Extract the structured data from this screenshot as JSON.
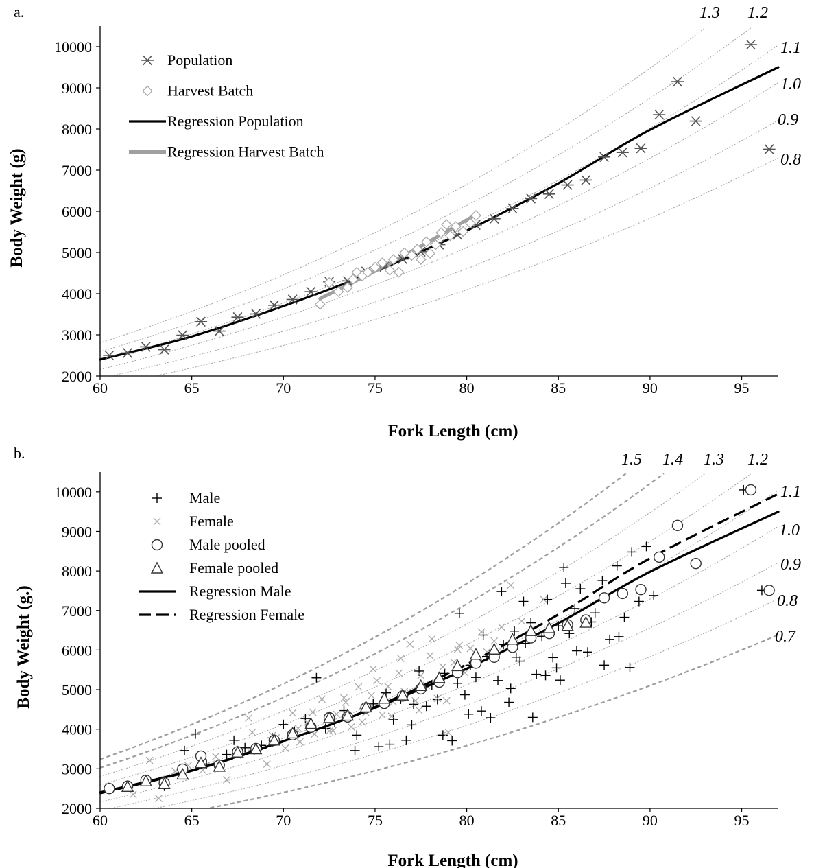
{
  "chart_data": [
    {
      "panel": "a.",
      "type": "scatter",
      "xlabel": "Fork Length (cm)",
      "ylabel": "Body Weight (g)",
      "xlim": [
        60,
        97
      ],
      "ylim": [
        2000,
        10500
      ],
      "x_ticks": [
        60,
        65,
        70,
        75,
        80,
        85,
        90,
        95
      ],
      "y_ticks": [
        2000,
        3000,
        4000,
        5000,
        6000,
        7000,
        8000,
        9000,
        10000
      ],
      "grid": false,
      "legend_position": "top-left",
      "condition_curves": {
        "values": [
          0.8,
          0.9,
          1.0,
          1.1,
          1.2,
          1.3
        ],
        "labels": [
          "0.8",
          "0.9",
          "1.0",
          "1.1",
          "1.2",
          "1.3"
        ],
        "color": "#9a9a9a",
        "style": "dotted"
      },
      "series": [
        {
          "name": "Population",
          "kind": "points",
          "marker": "asterisk",
          "color": "#555555",
          "x": [
            60.5,
            61.5,
            62.5,
            63.5,
            64.5,
            65.5,
            66.5,
            67.5,
            68.5,
            69.5,
            70.5,
            71.5,
            72.5,
            73.5,
            74.5,
            75.5,
            76.5,
            77.5,
            78.5,
            79.5,
            80.5,
            81.5,
            82.5,
            83.5,
            84.5,
            85.5,
            86.5,
            87.5,
            88.5,
            89.5,
            90.5,
            91.5,
            92.5,
            95.5,
            96.5
          ],
          "y": [
            2500,
            2560,
            2710,
            2640,
            2990,
            3320,
            3090,
            3430,
            3510,
            3720,
            3860,
            4050,
            4290,
            4310,
            4540,
            4650,
            4840,
            5020,
            5190,
            5430,
            5670,
            5820,
            6070,
            6310,
            6420,
            6640,
            6760,
            7320,
            7430,
            7530,
            8350,
            9150,
            8190,
            10050,
            7510
          ]
        },
        {
          "name": "Harvest Batch",
          "kind": "points",
          "marker": "diamond",
          "color": "#a8a8a8",
          "x": [
            72.0,
            72.5,
            73.0,
            73.5,
            73.8,
            74.0,
            74.3,
            74.6,
            75.0,
            75.4,
            75.8,
            76.0,
            76.3,
            76.6,
            77.0,
            77.3,
            77.5,
            77.8,
            78.0,
            78.3,
            78.6,
            78.9,
            79.1,
            79.4,
            79.8,
            80.2,
            80.5
          ],
          "y": [
            3740,
            4270,
            4050,
            4150,
            4350,
            4520,
            4430,
            4520,
            4640,
            4750,
            4570,
            4830,
            4520,
            4990,
            4930,
            5080,
            4830,
            5260,
            4980,
            5190,
            5480,
            5680,
            5410,
            5630,
            5510,
            5710,
            5900
          ]
        },
        {
          "name": "Regression Population",
          "kind": "curve",
          "color": "#000000",
          "x": [
            60,
            65,
            70,
            75,
            80,
            85,
            90,
            97
          ],
          "y": [
            2400,
            2960,
            3700,
            4540,
            5530,
            6680,
            7980,
            9500
          ]
        },
        {
          "name": "Regression Harvest Batch",
          "kind": "curve",
          "color": "#a0a0a0",
          "x": [
            72,
            76,
            80.5
          ],
          "y": [
            3880,
            4780,
            5920
          ]
        }
      ]
    },
    {
      "panel": "b.",
      "type": "scatter",
      "xlabel": "Fork Length (cm)",
      "ylabel": "Body Weight (g.)",
      "xlim": [
        60,
        97
      ],
      "ylim": [
        2000,
        10500
      ],
      "x_ticks": [
        60,
        65,
        70,
        75,
        80,
        85,
        90,
        95
      ],
      "y_ticks": [
        2000,
        3000,
        4000,
        5000,
        6000,
        7000,
        8000,
        9000,
        10000
      ],
      "grid": false,
      "legend_position": "top-left",
      "condition_curves": {
        "values": [
          0.7,
          0.8,
          0.9,
          1.0,
          1.1,
          1.2,
          1.3,
          1.4,
          1.5
        ],
        "labels": [
          "0.7",
          "0.8",
          "0.9",
          "1.0",
          "1.1",
          "1.2",
          "1.3",
          "1.4",
          "1.5"
        ],
        "dashed": [
          0.7,
          1.4,
          1.5
        ],
        "color": "#9a9a9a"
      },
      "series": [
        {
          "name": "Male",
          "kind": "points",
          "marker": "plus",
          "color": "#000000",
          "x": [
            63.5,
            64.6,
            65.2,
            65.8,
            66.9,
            67.3,
            67.9,
            68.4,
            68.8,
            69.4,
            70.0,
            70.6,
            71.2,
            71.8,
            72.3,
            72.8,
            73.3,
            73.6,
            74.0,
            74.4,
            74.9,
            75.2,
            75.6,
            76.0,
            76.4,
            76.7,
            77.1,
            77.4,
            77.8,
            78.1,
            78.4,
            78.8,
            79.2,
            79.5,
            79.9,
            80.2,
            80.5,
            80.8,
            81.1,
            81.4,
            81.7,
            82.0,
            82.3,
            82.6,
            82.9,
            83.2,
            83.5,
            83.8,
            84.1,
            84.4,
            84.7,
            85.0,
            85.3,
            85.6,
            85.9,
            86.2,
            86.6,
            87.0,
            87.4,
            87.8,
            88.2,
            88.6,
            89.0,
            89.4,
            89.8,
            90.2,
            95.1,
            96.1,
            73.9,
            75.8,
            77.0,
            78.7,
            80.1,
            81.3,
            82.4,
            83.6,
            84.9,
            86.0,
            87.5,
            88.9,
            79.6,
            81.9,
            83.1,
            85.4,
            86.8,
            88.3,
            80.9,
            82.7,
            84.3,
            85.1
          ],
          "y": [
            2560,
            3460,
            3880,
            3120,
            3360,
            3720,
            3530,
            3460,
            3590,
            3780,
            4120,
            3950,
            4270,
            5300,
            4020,
            4180,
            4470,
            4330,
            3850,
            4510,
            4640,
            3560,
            4920,
            4240,
            4760,
            3720,
            4630,
            5470,
            4580,
            5120,
            4750,
            5410,
            3710,
            5160,
            4870,
            5620,
            5310,
            4460,
            5840,
            5990,
            5230,
            6140,
            4680,
            6480,
            5720,
            6170,
            6690,
            5390,
            6350,
            7280,
            5810,
            6610,
            8090,
            6420,
            7050,
            7550,
            5950,
            6940,
            7760,
            6270,
            8130,
            6830,
            8480,
            7230,
            8620,
            7380,
            10050,
            7510,
            3460,
            3620,
            4110,
            3850,
            4380,
            4290,
            5030,
            4300,
            5550,
            5980,
            5620,
            5560,
            6930,
            7480,
            7230,
            7690,
            6710,
            6340,
            6380,
            5820,
            5360,
            5240
          ]
        },
        {
          "name": "Female",
          "kind": "points",
          "marker": "cross",
          "color": "#aaaaaa",
          "x": [
            61.8,
            62.7,
            63.2,
            64.1,
            64.8,
            65.6,
            66.3,
            66.9,
            67.5,
            68.1,
            68.6,
            69.1,
            69.6,
            70.1,
            70.5,
            70.9,
            71.3,
            71.7,
            72.1,
            72.5,
            72.9,
            73.3,
            73.7,
            74.1,
            74.5,
            74.8,
            75.1,
            75.4,
            75.7,
            76.0,
            76.3,
            76.6,
            76.9,
            77.2,
            77.5,
            77.8,
            78.1,
            78.4,
            78.7,
            79.0,
            79.3,
            79.6,
            79.9,
            80.2,
            80.5,
            80.8,
            81.1,
            81.5,
            81.9,
            82.4,
            83.0,
            84.2,
            68.3,
            70.8,
            72.7,
            74.3,
            75.9,
            77.4,
            78.9,
            69.4,
            71.6,
            73.4,
            74.9,
            76.4,
            78.0,
            79.5
          ],
          "y": [
            2350,
            3210,
            2250,
            2940,
            3080,
            2960,
            3310,
            2720,
            3340,
            4280,
            3450,
            3120,
            3780,
            3520,
            4410,
            3680,
            4170,
            3880,
            4760,
            3950,
            4380,
            4790,
            4060,
            5070,
            4420,
            4850,
            5230,
            4360,
            5080,
            4690,
            5420,
            4950,
            6150,
            4720,
            5360,
            5110,
            6280,
            4780,
            5580,
            3920,
            5690,
            6120,
            5430,
            6040,
            5820,
            6460,
            5950,
            6230,
            6580,
            7640,
            6730,
            7280,
            3920,
            4020,
            3960,
            4180,
            4330,
            4480,
            4720,
            3840,
            4430,
            4680,
            5520,
            5790,
            5860,
            6020
          ]
        },
        {
          "name": "Male pooled",
          "kind": "points",
          "marker": "circle",
          "color": "#000000",
          "x": [
            60.5,
            61.5,
            62.5,
            63.5,
            64.5,
            65.5,
            66.5,
            67.5,
            68.5,
            69.5,
            70.5,
            71.5,
            72.5,
            73.5,
            74.5,
            75.5,
            76.5,
            77.5,
            78.5,
            79.5,
            80.5,
            81.5,
            82.5,
            83.5,
            84.5,
            85.5,
            86.5,
            87.5,
            88.5,
            89.5,
            90.5,
            91.5,
            92.5,
            95.5,
            96.5
          ],
          "y": [
            2500,
            2560,
            2710,
            2640,
            2990,
            3320,
            3090,
            3430,
            3510,
            3720,
            3860,
            4050,
            4290,
            4310,
            4540,
            4650,
            4840,
            5020,
            5190,
            5430,
            5670,
            5820,
            6070,
            6310,
            6420,
            6640,
            6760,
            7320,
            7430,
            7530,
            8350,
            9150,
            8190,
            10050,
            7510
          ]
        },
        {
          "name": "Female pooled",
          "kind": "points",
          "marker": "triangle",
          "color": "#000000",
          "x": [
            61.5,
            62.5,
            63.5,
            64.5,
            65.5,
            66.5,
            67.5,
            68.5,
            69.5,
            70.5,
            71.5,
            72.5,
            73.5,
            74.5,
            75.5,
            76.5,
            77.5,
            78.5,
            79.5,
            80.5,
            81.5,
            82.5,
            83.5,
            84.5,
            85.5,
            86.5
          ],
          "y": [
            2550,
            2690,
            2620,
            2860,
            3150,
            3060,
            3420,
            3500,
            3720,
            3900,
            4140,
            4290,
            4350,
            4560,
            4780,
            4860,
            5100,
            5300,
            5600,
            5890,
            6020,
            6270,
            6490,
            6560,
            6620,
            6700
          ]
        },
        {
          "name": "Regression Male",
          "kind": "curve",
          "style": "solid",
          "color": "#000000",
          "x": [
            60,
            65,
            70,
            75,
            80,
            85,
            90,
            97
          ],
          "y": [
            2400,
            2960,
            3700,
            4540,
            5530,
            6680,
            7980,
            9500
          ]
        },
        {
          "name": "Regression Female",
          "kind": "curve",
          "style": "dashed",
          "color": "#000000",
          "x": [
            60,
            65,
            70,
            75,
            80,
            85,
            90,
            97
          ],
          "y": [
            2380,
            2950,
            3690,
            4560,
            5640,
            6900,
            8320,
            9950
          ]
        }
      ]
    }
  ]
}
